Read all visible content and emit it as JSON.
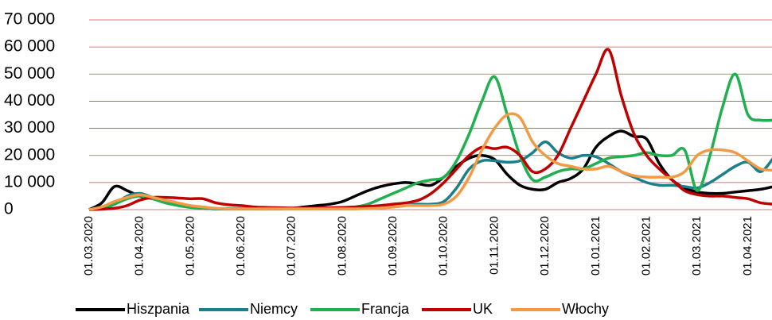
{
  "chart_data": {
    "type": "line",
    "categories": [
      "01.03.2020",
      null,
      null,
      null,
      "01.04.2020",
      null,
      null,
      null,
      "01.05.2020",
      null,
      null,
      null,
      "01.06.2020",
      null,
      null,
      null,
      "01.07.2020",
      null,
      null,
      null,
      "01.08.2020",
      null,
      null,
      null,
      "01.09.2020",
      null,
      null,
      null,
      "01.10.2020",
      null,
      null,
      null,
      "01.11.2020",
      null,
      null,
      null,
      "01.12.2020",
      null,
      null,
      null,
      "01.01.2021",
      null,
      null,
      null,
      "01.02.2021",
      null,
      null,
      null,
      "01.03.2021",
      null,
      null,
      null,
      "01.04.2021",
      null,
      null
    ],
    "series": [
      {
        "name": "Hiszpania",
        "color": "#000000",
        "values": [
          0,
          2500,
          8500,
          7000,
          5000,
          4000,
          3000,
          2000,
          1000,
          500,
          300,
          300,
          300,
          300,
          300,
          300,
          500,
          1000,
          1500,
          2000,
          3000,
          5000,
          7000,
          8500,
          9500,
          10000,
          9500,
          9000,
          12000,
          16000,
          19000,
          20000,
          18500,
          13000,
          9000,
          7500,
          7500,
          10000,
          11500,
          15000,
          23000,
          27000,
          29000,
          27000,
          26000,
          17000,
          11000,
          8000,
          6500,
          6000,
          6000,
          6500,
          7000,
          7500,
          8500
        ]
      },
      {
        "name": "Niemcy",
        "color": "#1b7f8c",
        "values": [
          0,
          500,
          2000,
          5000,
          6000,
          4500,
          3000,
          2000,
          1000,
          500,
          300,
          300,
          300,
          300,
          300,
          300,
          300,
          300,
          300,
          300,
          300,
          300,
          500,
          700,
          1000,
          1500,
          2000,
          2000,
          3000,
          8000,
          15000,
          18000,
          18000,
          17500,
          18000,
          21000,
          25000,
          21000,
          19000,
          20000,
          19500,
          17000,
          14000,
          12000,
          10000,
          9000,
          9000,
          8500,
          8000,
          10000,
          13000,
          16000,
          17500,
          14000,
          19000
        ]
      },
      {
        "name": "Francja",
        "color": "#21b04f",
        "values": [
          0,
          500,
          2000,
          4000,
          5000,
          4000,
          2500,
          1500,
          800,
          500,
          400,
          400,
          400,
          400,
          400,
          400,
          500,
          500,
          500,
          600,
          700,
          1000,
          2000,
          4000,
          6000,
          8000,
          10000,
          11000,
          12000,
          18000,
          28000,
          40000,
          49000,
          35000,
          20000,
          11000,
          12000,
          14000,
          15000,
          15000,
          17000,
          19000,
          19500,
          20000,
          21000,
          20000,
          20000,
          22000,
          7000,
          20000,
          38000,
          50000,
          35000,
          33000,
          33000
        ]
      },
      {
        "name": "UK",
        "color": "#c00000",
        "values": [
          0,
          200,
          500,
          1500,
          3500,
          4500,
          4500,
          4300,
          4000,
          4000,
          2500,
          1800,
          1500,
          1000,
          800,
          700,
          600,
          600,
          600,
          700,
          800,
          1000,
          1200,
          1500,
          2000,
          2500,
          3500,
          6000,
          10000,
          15000,
          20000,
          23000,
          22500,
          23000,
          20000,
          14000,
          15000,
          20000,
          30000,
          40000,
          50000,
          59000,
          42000,
          28000,
          20000,
          15000,
          11000,
          7000,
          5500,
          5000,
          5000,
          4500,
          4000,
          2500,
          2000
        ]
      },
      {
        "name": "Włochy",
        "color": "#f39a45",
        "values": [
          0,
          1000,
          3000,
          4500,
          5500,
          4500,
          3500,
          2500,
          1500,
          1000,
          500,
          300,
          300,
          300,
          300,
          300,
          300,
          300,
          300,
          300,
          300,
          300,
          400,
          600,
          1000,
          1500,
          1500,
          1500,
          2000,
          5000,
          12000,
          22000,
          30000,
          35000,
          34000,
          25000,
          20000,
          17000,
          16000,
          15000,
          15000,
          16000,
          14000,
          12500,
          12000,
          12000,
          12000,
          14000,
          20000,
          22000,
          22000,
          21000,
          18000,
          15000,
          14500
        ]
      }
    ],
    "ylim": [
      0,
      70000
    ],
    "yticks": [
      0,
      {
        "value": 10000,
        "label": "10 000"
      },
      {
        "value": 20000,
        "label": "20 000"
      },
      {
        "value": 30000,
        "label": "30 000"
      },
      {
        "value": 40000,
        "label": "40 000"
      },
      {
        "value": 50000,
        "label": "50 000"
      },
      {
        "value": 60000,
        "label": "60 000"
      },
      {
        "value": 70000,
        "label": "70 000"
      }
    ],
    "grid": true,
    "legend": "bottom"
  }
}
